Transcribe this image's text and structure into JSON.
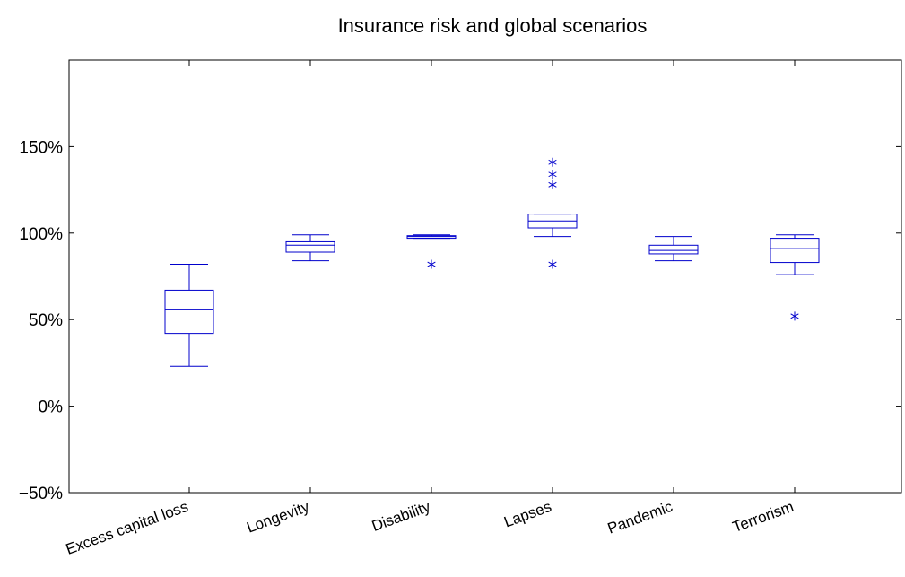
{
  "chart_data": {
    "type": "boxplot",
    "title": "Insurance risk and global scenarios",
    "xlabel": "",
    "ylabel": "",
    "ylim": [
      -50,
      200
    ],
    "y_ticks": [
      -50,
      0,
      50,
      100,
      150
    ],
    "y_tick_labels": [
      "−50%",
      "0%",
      "50%",
      "100%",
      "150%"
    ],
    "grid": false,
    "color": "#0000cc",
    "categories": [
      "Excess capital loss",
      "Longevity",
      "Disability",
      "Lapses",
      "Pandemic",
      "Terrorism"
    ],
    "boxes": [
      {
        "name": "Excess capital loss",
        "whisker_low": 23,
        "q1": 42,
        "median": 56,
        "q3": 67,
        "whisker_high": 82,
        "outliers": []
      },
      {
        "name": "Longevity",
        "whisker_low": 84,
        "q1": 89,
        "median": 93,
        "q3": 95,
        "whisker_high": 99,
        "outliers": []
      },
      {
        "name": "Disability",
        "whisker_low": 97,
        "q1": 97,
        "median": 98,
        "q3": 98.5,
        "whisker_high": 99,
        "outliers": [
          82
        ]
      },
      {
        "name": "Lapses",
        "whisker_low": 98,
        "q1": 103,
        "median": 107,
        "q3": 111,
        "whisker_high": 111,
        "outliers": [
          82,
          128,
          134,
          141
        ]
      },
      {
        "name": "Pandemic",
        "whisker_low": 84,
        "q1": 88,
        "median": 90,
        "q3": 93,
        "whisker_high": 98,
        "outliers": []
      },
      {
        "name": "Terrorism",
        "whisker_low": 76,
        "q1": 83,
        "median": 91,
        "q3": 97,
        "whisker_high": 99,
        "outliers": [
          52
        ]
      }
    ]
  }
}
